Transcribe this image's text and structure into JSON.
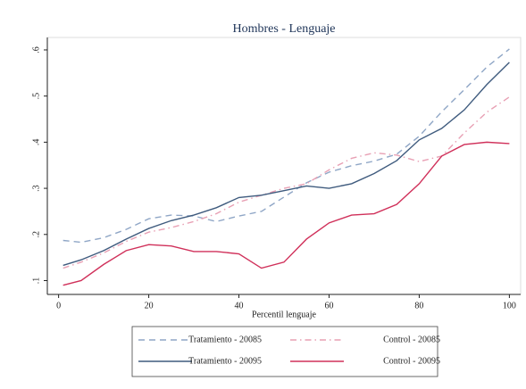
{
  "chart_data": {
    "type": "line",
    "title": "Hombres - Lenguaje",
    "x_label": "Percentil lenguaje",
    "x": [
      1,
      5,
      10,
      15,
      20,
      25,
      30,
      35,
      40,
      45,
      50,
      55,
      60,
      65,
      70,
      75,
      80,
      85,
      90,
      95,
      100
    ],
    "series": [
      {
        "name": "Tratamiento - 20085",
        "color": "#8fa6c6",
        "dash": "dashed",
        "values": [
          0.187,
          0.183,
          0.193,
          0.211,
          0.234,
          0.242,
          0.24,
          0.228,
          0.24,
          0.25,
          0.281,
          0.312,
          0.335,
          0.349,
          0.359,
          0.374,
          0.413,
          0.466,
          0.514,
          0.563,
          0.602
        ]
      },
      {
        "name": "Control - 20085",
        "color": "#e8a0b4",
        "dash": "dash-dot",
        "values": [
          0.127,
          0.14,
          0.16,
          0.185,
          0.205,
          0.215,
          0.228,
          0.245,
          0.27,
          0.285,
          0.3,
          0.31,
          0.34,
          0.365,
          0.377,
          0.372,
          0.358,
          0.37,
          0.42,
          0.465,
          0.498
        ]
      },
      {
        "name": "Tratamiento - 20095",
        "color": "#3f5b7e",
        "dash": "solid",
        "values": [
          0.133,
          0.145,
          0.165,
          0.19,
          0.213,
          0.23,
          0.242,
          0.258,
          0.28,
          0.285,
          0.295,
          0.305,
          0.3,
          0.31,
          0.332,
          0.36,
          0.405,
          0.43,
          0.47,
          0.525,
          0.573
        ]
      },
      {
        "name": "Control - 20095",
        "color": "#d0305a",
        "dash": "solid",
        "values": [
          0.09,
          0.1,
          0.135,
          0.165,
          0.178,
          0.175,
          0.163,
          0.163,
          0.158,
          0.127,
          0.14,
          0.19,
          0.225,
          0.242,
          0.245,
          0.265,
          0.31,
          0.37,
          0.395,
          0.4,
          0.397
        ]
      }
    ],
    "xlim": [
      -2.5,
      102.5
    ],
    "xticks": [
      0,
      20,
      40,
      60,
      80,
      100
    ],
    "ylim": [
      0.07,
      0.627
    ],
    "yticks": [
      {
        "value": 0.1,
        "label": ".1"
      },
      {
        "value": 0.2,
        "label": ".2"
      },
      {
        "value": 0.3,
        "label": ".3"
      },
      {
        "value": 0.4,
        "label": ".4"
      },
      {
        "value": 0.5,
        "label": ".5"
      },
      {
        "value": 0.6,
        "label": ".6"
      }
    ]
  }
}
